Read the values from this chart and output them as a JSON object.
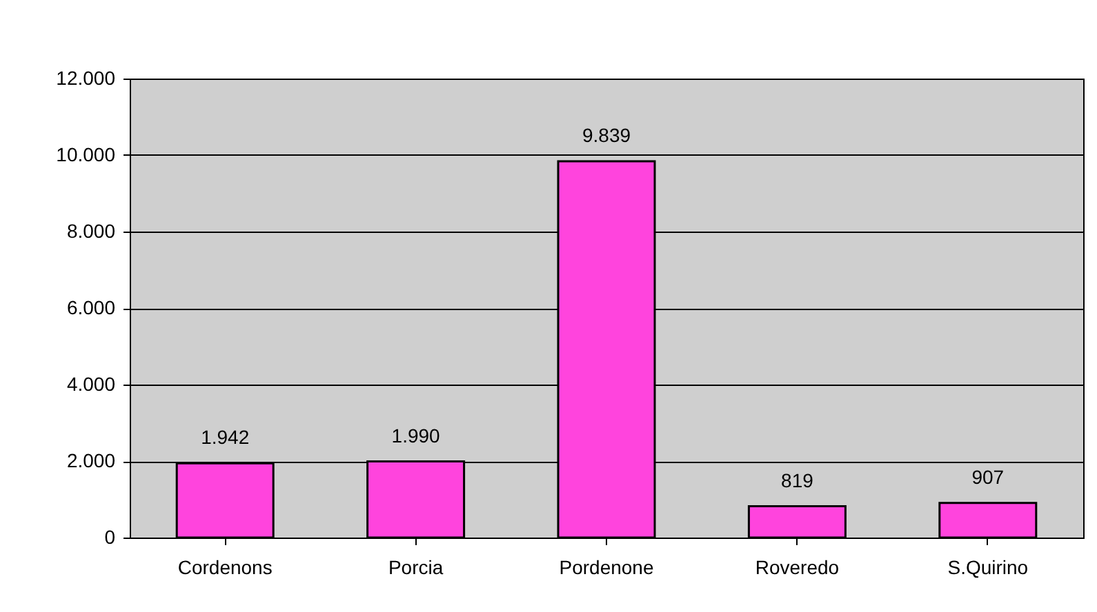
{
  "chart_data": {
    "type": "bar",
    "categories": [
      "Cordenons",
      "Porcia",
      "Pordenone",
      "Roveredo",
      "S.Quirino"
    ],
    "values": [
      1942,
      1990,
      9839,
      819,
      907
    ],
    "value_labels": [
      "1.942",
      "1.990",
      "9.839",
      "819",
      "907"
    ],
    "color": "#ff44dd",
    "ylim": [
      0,
      12000
    ],
    "yticks": [
      0,
      {
        "value": 2000,
        "label": "2.000"
      },
      {
        "value": 4000,
        "label": "4.000"
      },
      {
        "value": 6000,
        "label": "6.000"
      },
      {
        "value": 8000,
        "label": "8.000"
      },
      {
        "value": 10000,
        "label": "10.000"
      },
      {
        "value": 12000,
        "label": "12.000"
      }
    ],
    "grid": "y"
  }
}
